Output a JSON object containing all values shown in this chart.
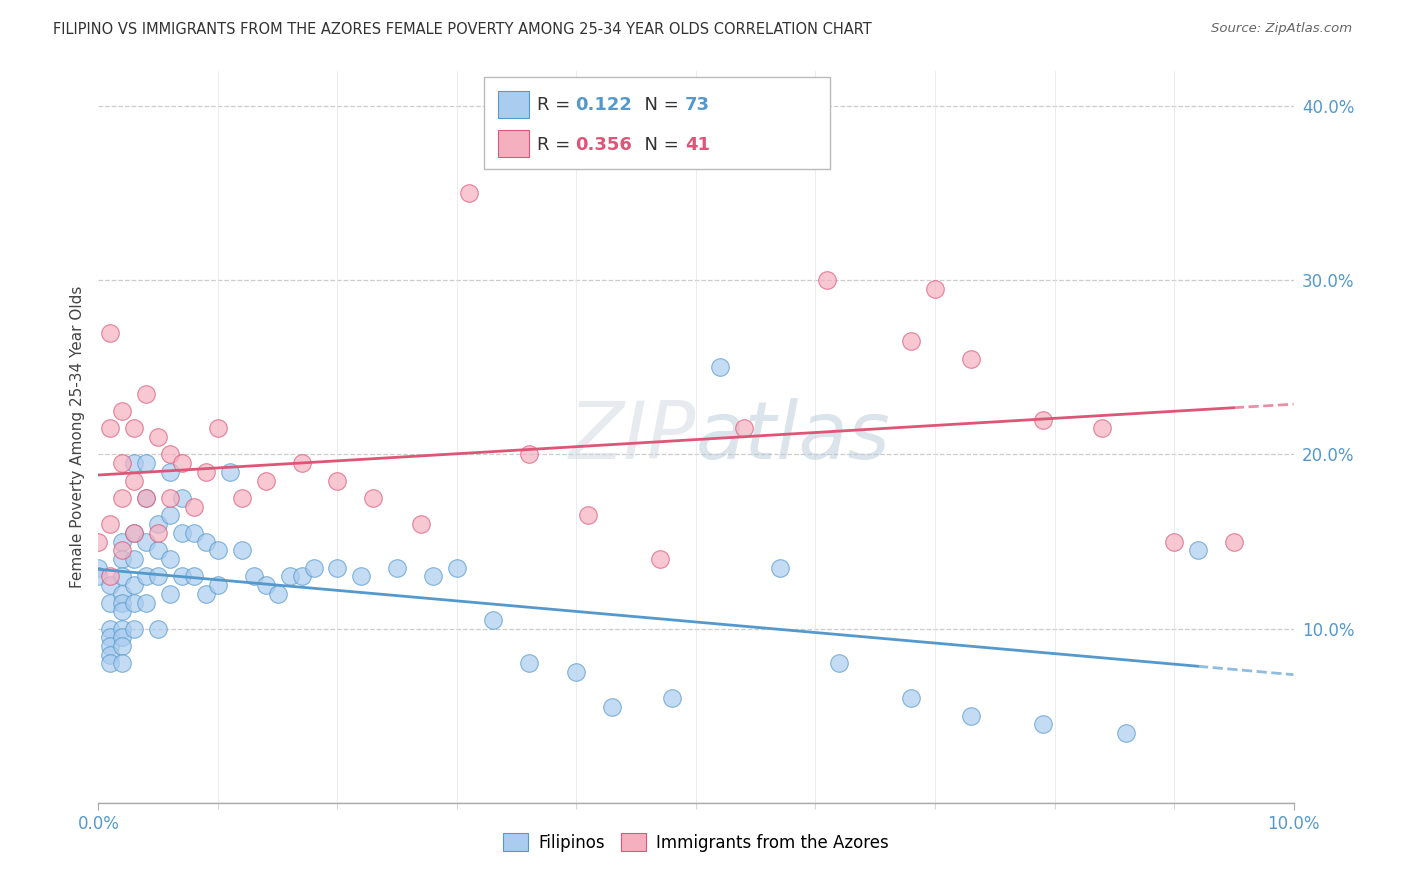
{
  "title": "FILIPINO VS IMMIGRANTS FROM THE AZORES FEMALE POVERTY AMONG 25-34 YEAR OLDS CORRELATION CHART",
  "source": "Source: ZipAtlas.com",
  "ylabel": "Female Poverty Among 25-34 Year Olds",
  "xlim": [
    0.0,
    0.1
  ],
  "ylim": [
    0.0,
    0.42
  ],
  "ytick_vals": [
    0.0,
    0.1,
    0.2,
    0.3,
    0.4
  ],
  "ytick_labels": [
    "",
    "10.0%",
    "20.0%",
    "30.0%",
    "40.0%"
  ],
  "color_filipino": "#aaccee",
  "color_azores": "#f5b0c0",
  "line_color_filipino": "#5599cc",
  "line_color_azores": "#dd5577",
  "r_filipino": "0.122",
  "n_filipino": "73",
  "r_azores": "0.356",
  "n_azores": "41",
  "filipino_x": [
    0.0,
    0.0,
    0.001,
    0.001,
    0.001,
    0.001,
    0.001,
    0.001,
    0.001,
    0.002,
    0.002,
    0.002,
    0.002,
    0.002,
    0.002,
    0.002,
    0.002,
    0.002,
    0.002,
    0.003,
    0.003,
    0.003,
    0.003,
    0.003,
    0.003,
    0.004,
    0.004,
    0.004,
    0.004,
    0.004,
    0.005,
    0.005,
    0.005,
    0.005,
    0.006,
    0.006,
    0.006,
    0.006,
    0.007,
    0.007,
    0.007,
    0.008,
    0.008,
    0.009,
    0.009,
    0.01,
    0.01,
    0.011,
    0.012,
    0.013,
    0.014,
    0.015,
    0.016,
    0.017,
    0.018,
    0.02,
    0.022,
    0.025,
    0.028,
    0.03,
    0.033,
    0.036,
    0.04,
    0.043,
    0.048,
    0.052,
    0.057,
    0.062,
    0.068,
    0.073,
    0.079,
    0.086,
    0.092
  ],
  "filipino_y": [
    0.135,
    0.13,
    0.115,
    0.125,
    0.1,
    0.095,
    0.09,
    0.085,
    0.08,
    0.15,
    0.14,
    0.13,
    0.12,
    0.115,
    0.11,
    0.1,
    0.095,
    0.09,
    0.08,
    0.195,
    0.155,
    0.14,
    0.125,
    0.115,
    0.1,
    0.195,
    0.175,
    0.15,
    0.13,
    0.115,
    0.16,
    0.145,
    0.13,
    0.1,
    0.19,
    0.165,
    0.14,
    0.12,
    0.175,
    0.155,
    0.13,
    0.155,
    0.13,
    0.15,
    0.12,
    0.145,
    0.125,
    0.19,
    0.145,
    0.13,
    0.125,
    0.12,
    0.13,
    0.13,
    0.135,
    0.135,
    0.13,
    0.135,
    0.13,
    0.135,
    0.105,
    0.08,
    0.075,
    0.055,
    0.06,
    0.25,
    0.135,
    0.08,
    0.06,
    0.05,
    0.045,
    0.04,
    0.145
  ],
  "azores_x": [
    0.0,
    0.001,
    0.001,
    0.001,
    0.001,
    0.002,
    0.002,
    0.002,
    0.002,
    0.003,
    0.003,
    0.003,
    0.004,
    0.004,
    0.005,
    0.005,
    0.006,
    0.006,
    0.007,
    0.008,
    0.009,
    0.01,
    0.012,
    0.014,
    0.017,
    0.02,
    0.023,
    0.027,
    0.031,
    0.036,
    0.041,
    0.047,
    0.054,
    0.061,
    0.068,
    0.073,
    0.079,
    0.084,
    0.09,
    0.095,
    0.07
  ],
  "azores_y": [
    0.15,
    0.27,
    0.215,
    0.16,
    0.13,
    0.225,
    0.195,
    0.175,
    0.145,
    0.215,
    0.185,
    0.155,
    0.235,
    0.175,
    0.21,
    0.155,
    0.2,
    0.175,
    0.195,
    0.17,
    0.19,
    0.215,
    0.175,
    0.185,
    0.195,
    0.185,
    0.175,
    0.16,
    0.35,
    0.2,
    0.165,
    0.14,
    0.215,
    0.3,
    0.265,
    0.255,
    0.22,
    0.215,
    0.15,
    0.15,
    0.295
  ]
}
